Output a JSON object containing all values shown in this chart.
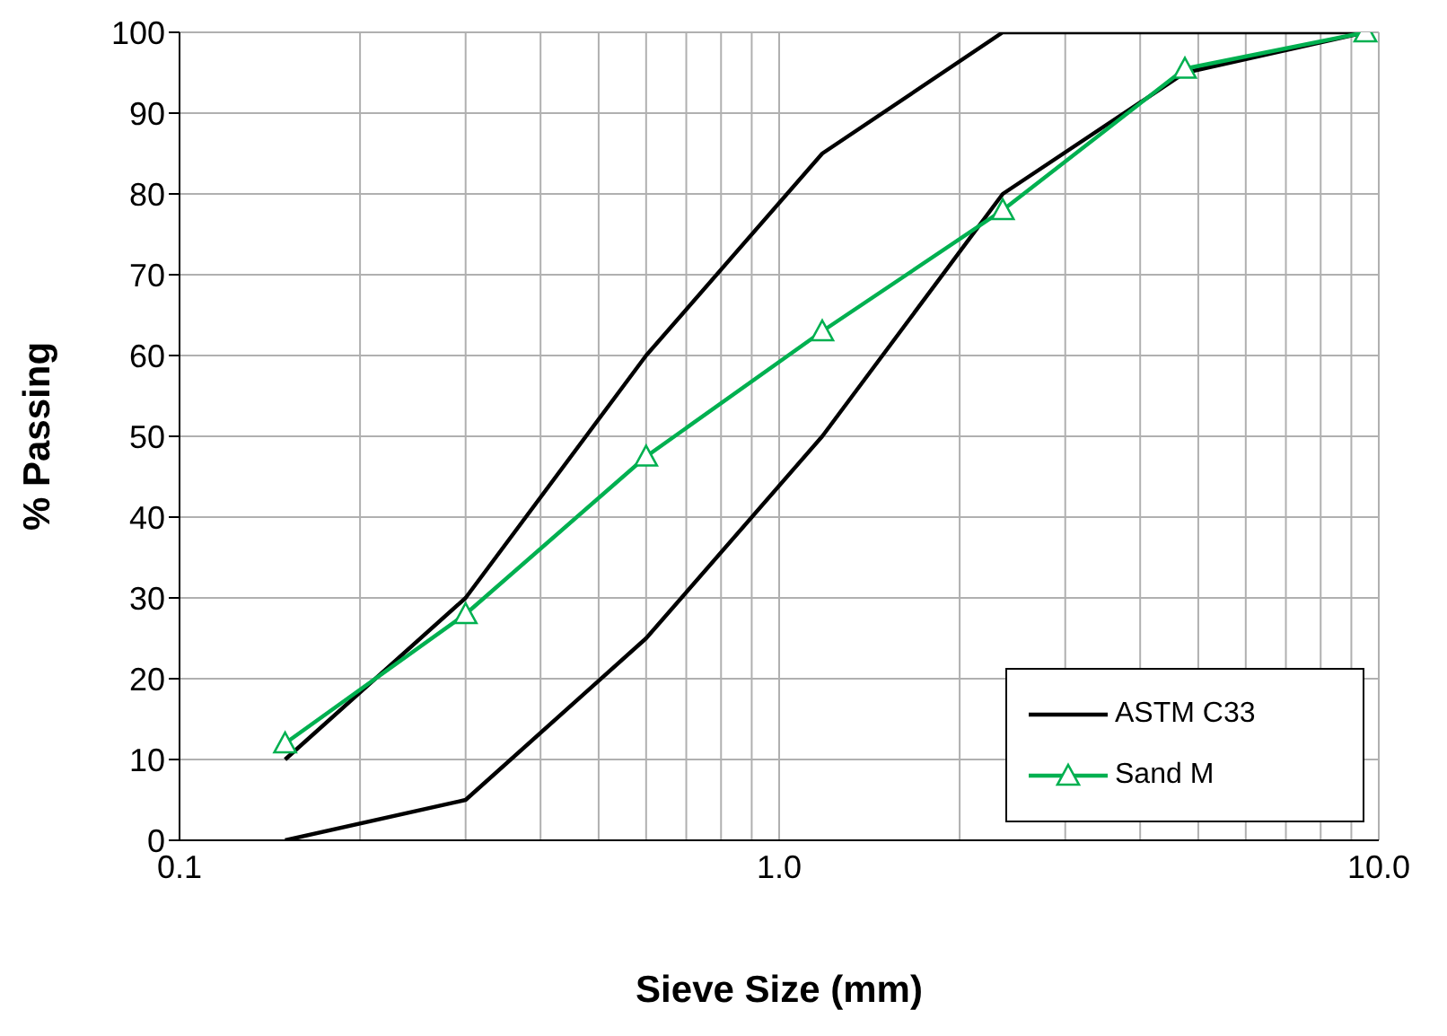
{
  "chart_data": {
    "type": "line",
    "xlabel": "Sieve Size (mm)",
    "ylabel": "% Passing",
    "log": "x",
    "xlim": [
      0.1,
      10
    ],
    "xticks": [
      {
        "value": 0.1,
        "label": "0.1"
      },
      {
        "value": 0.2,
        "label": null
      },
      {
        "value": 0.3,
        "label": null
      },
      {
        "value": 0.4,
        "label": null
      },
      {
        "value": 0.5,
        "label": null
      },
      {
        "value": 0.6,
        "label": null
      },
      {
        "value": 0.7,
        "label": null
      },
      {
        "value": 0.8,
        "label": null
      },
      {
        "value": 0.9,
        "label": null
      },
      {
        "value": 1,
        "label": "1.0"
      },
      {
        "value": 2,
        "label": null
      },
      {
        "value": 3,
        "label": null
      },
      {
        "value": 4,
        "label": null
      },
      {
        "value": 5,
        "label": null
      },
      {
        "value": 6,
        "label": null
      },
      {
        "value": 7,
        "label": null
      },
      {
        "value": 8,
        "label": null
      },
      {
        "value": 9,
        "label": null
      },
      {
        "value": 10,
        "label": "10.0"
      }
    ],
    "ylim": [
      0,
      100
    ],
    "yticks": [
      0,
      10,
      20,
      30,
      40,
      50,
      60,
      70,
      80,
      90,
      100
    ],
    "grid": true,
    "legend": "bottom right",
    "series": [
      {
        "name": "ASTM C33",
        "color": "#000000",
        "marker": "none",
        "x": [
          0.15,
          0.3,
          0.6,
          1.18,
          2.36,
          4.75,
          9.5
        ],
        "values": [
          10,
          30,
          60,
          85,
          100,
          100,
          100
        ]
      },
      {
        "color": "#000000",
        "marker": "none",
        "x": [
          0.15,
          0.3,
          0.6,
          1.18,
          2.36,
          4.75,
          9.5
        ],
        "values": [
          0,
          5,
          25,
          50,
          80,
          95,
          100
        ]
      },
      {
        "name": "Sand M",
        "color": "#00b050",
        "marker": "triangle",
        "x": [
          0.15,
          0.3,
          0.6,
          1.18,
          2.36,
          4.75,
          9.5
        ],
        "values": [
          12,
          28,
          47.5,
          63,
          78,
          95.5,
          100
        ]
      }
    ]
  }
}
